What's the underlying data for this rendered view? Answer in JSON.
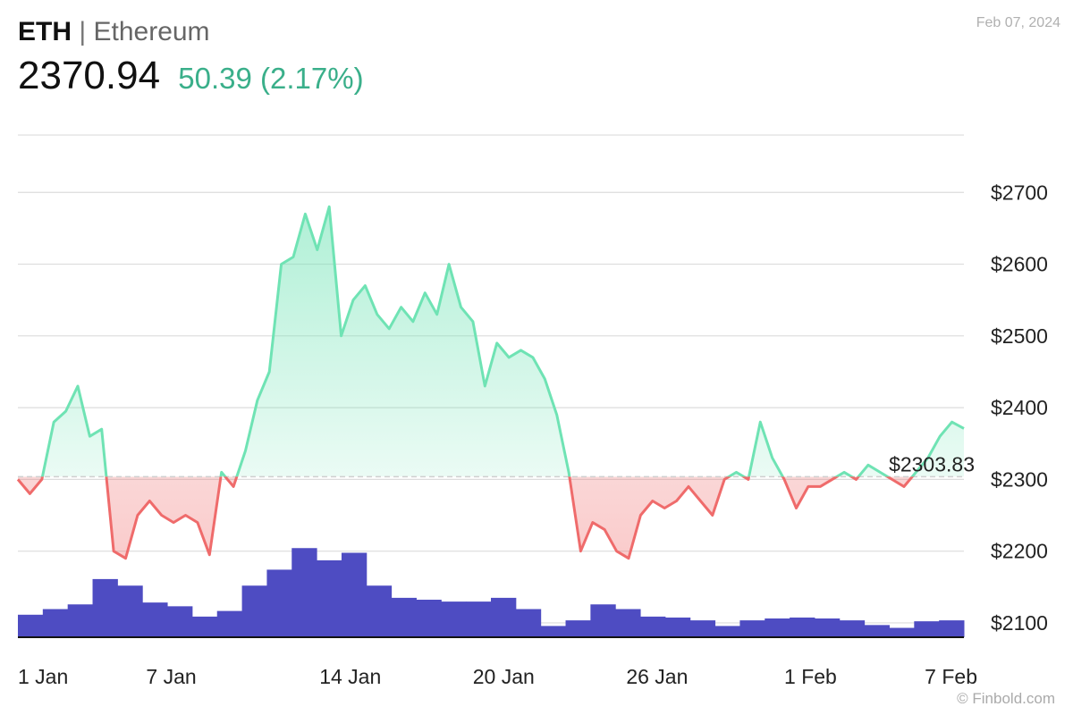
{
  "header": {
    "symbol": "ETH",
    "separator": "|",
    "name": "Ethereum",
    "price": "2370.94",
    "change": "50.39 (2.17%)",
    "date": "Feb 07, 2024"
  },
  "watermark": "© Finbold.com",
  "colors": {
    "up": "#6fe3b4",
    "down": "#ef6b6b",
    "volume": "#4e4cc2",
    "grid": "#dcdcdc",
    "change_text": "#3aaf8a"
  },
  "chart_data": {
    "type": "line",
    "baseline": {
      "value": 2303.83,
      "label": "$2303.83"
    },
    "ylim": [
      2080,
      2800
    ],
    "y_ticks": [
      2100,
      2200,
      2300,
      2400,
      2500,
      2600,
      2700
    ],
    "y_tick_labels": [
      "$2100",
      "$2200",
      "$2300",
      "$2400",
      "$2500",
      "$2600",
      "$2700"
    ],
    "y_axis_position": "right",
    "grid": true,
    "x_range": [
      "2024-01-01",
      "2024-02-07"
    ],
    "x_ticks": [
      "2024-01-01",
      "2024-01-07",
      "2024-01-14",
      "2024-01-20",
      "2024-01-26",
      "2024-02-01",
      "2024-02-07"
    ],
    "x_tick_labels": [
      "1 Jan",
      "7 Jan",
      "14 Jan",
      "20 Jan",
      "26 Jan",
      "1 Feb",
      "7 Feb"
    ],
    "price_series": {
      "x": [
        "2024-01-01",
        "2024-01-01",
        "2024-01-02",
        "2024-01-02",
        "2024-01-03",
        "2024-01-03",
        "2024-01-03",
        "2024-01-03",
        "2024-01-04",
        "2024-01-04",
        "2024-01-05",
        "2024-01-05",
        "2024-01-06",
        "2024-01-06",
        "2024-01-07",
        "2024-01-07",
        "2024-01-08",
        "2024-01-08",
        "2024-01-09",
        "2024-01-09",
        "2024-01-10",
        "2024-01-10",
        "2024-01-10",
        "2024-01-10",
        "2024-01-11",
        "2024-01-11",
        "2024-01-12",
        "2024-01-12",
        "2024-01-12",
        "2024-01-13",
        "2024-01-13",
        "2024-01-14",
        "2024-01-14",
        "2024-01-15",
        "2024-01-15",
        "2024-01-16",
        "2024-01-16",
        "2024-01-17",
        "2024-01-17",
        "2024-01-18",
        "2024-01-18",
        "2024-01-19",
        "2024-01-19",
        "2024-01-20",
        "2024-01-20",
        "2024-01-21",
        "2024-01-21",
        "2024-01-22",
        "2024-01-22",
        "2024-01-23",
        "2024-01-23",
        "2024-01-24",
        "2024-01-24",
        "2024-01-25",
        "2024-01-25",
        "2024-01-26",
        "2024-01-26",
        "2024-01-27",
        "2024-01-27",
        "2024-01-28",
        "2024-01-28",
        "2024-01-29",
        "2024-01-29",
        "2024-01-30",
        "2024-01-30",
        "2024-01-31",
        "2024-01-31",
        "2024-02-01",
        "2024-02-01",
        "2024-02-02",
        "2024-02-02",
        "2024-02-03",
        "2024-02-04",
        "2024-02-04",
        "2024-02-05",
        "2024-02-05",
        "2024-02-06",
        "2024-02-06",
        "2024-02-07",
        "2024-02-07"
      ],
      "y": [
        2300,
        2280,
        2300,
        2380,
        2395,
        2430,
        2360,
        2370,
        2200,
        2190,
        2250,
        2270,
        2250,
        2240,
        2250,
        2240,
        2195,
        2310,
        2290,
        2340,
        2410,
        2450,
        2600,
        2610,
        2670,
        2620,
        2680,
        2500,
        2550,
        2570,
        2530,
        2510,
        2540,
        2520,
        2560,
        2530,
        2600,
        2540,
        2520,
        2430,
        2490,
        2470,
        2480,
        2470,
        2440,
        2390,
        2310,
        2200,
        2240,
        2230,
        2200,
        2190,
        2250,
        2270,
        2260,
        2270,
        2290,
        2270,
        2250,
        2300,
        2310,
        2300,
        2380,
        2330,
        2300,
        2260,
        2290,
        2290,
        2300,
        2310,
        2300,
        2320,
        2310,
        2300,
        2290,
        2310,
        2330,
        2360,
        2380,
        2371
      ]
    },
    "volume_series": {
      "note_units": "relative",
      "x": [
        "2024-01-01",
        "2024-01-02",
        "2024-01-03",
        "2024-01-04",
        "2024-01-05",
        "2024-01-06",
        "2024-01-07",
        "2024-01-08",
        "2024-01-09",
        "2024-01-10",
        "2024-01-11",
        "2024-01-12",
        "2024-01-13",
        "2024-01-14",
        "2024-01-15",
        "2024-01-16",
        "2024-01-17",
        "2024-01-18",
        "2024-01-19",
        "2024-01-20",
        "2024-01-21",
        "2024-01-22",
        "2024-01-23",
        "2024-01-24",
        "2024-01-25",
        "2024-01-26",
        "2024-01-27",
        "2024-01-28",
        "2024-01-29",
        "2024-01-30",
        "2024-01-31",
        "2024-02-01",
        "2024-02-02",
        "2024-02-03",
        "2024-02-04",
        "2024-02-05",
        "2024-02-06",
        "2024-02-07"
      ],
      "values": [
        0.24,
        0.3,
        0.35,
        0.62,
        0.55,
        0.37,
        0.33,
        0.22,
        0.28,
        0.55,
        0.72,
        0.95,
        0.82,
        0.9,
        0.55,
        0.42,
        0.4,
        0.38,
        0.38,
        0.42,
        0.3,
        0.12,
        0.18,
        0.35,
        0.3,
        0.22,
        0.21,
        0.18,
        0.12,
        0.18,
        0.2,
        0.21,
        0.2,
        0.18,
        0.13,
        0.1,
        0.17,
        0.18
      ]
    }
  }
}
